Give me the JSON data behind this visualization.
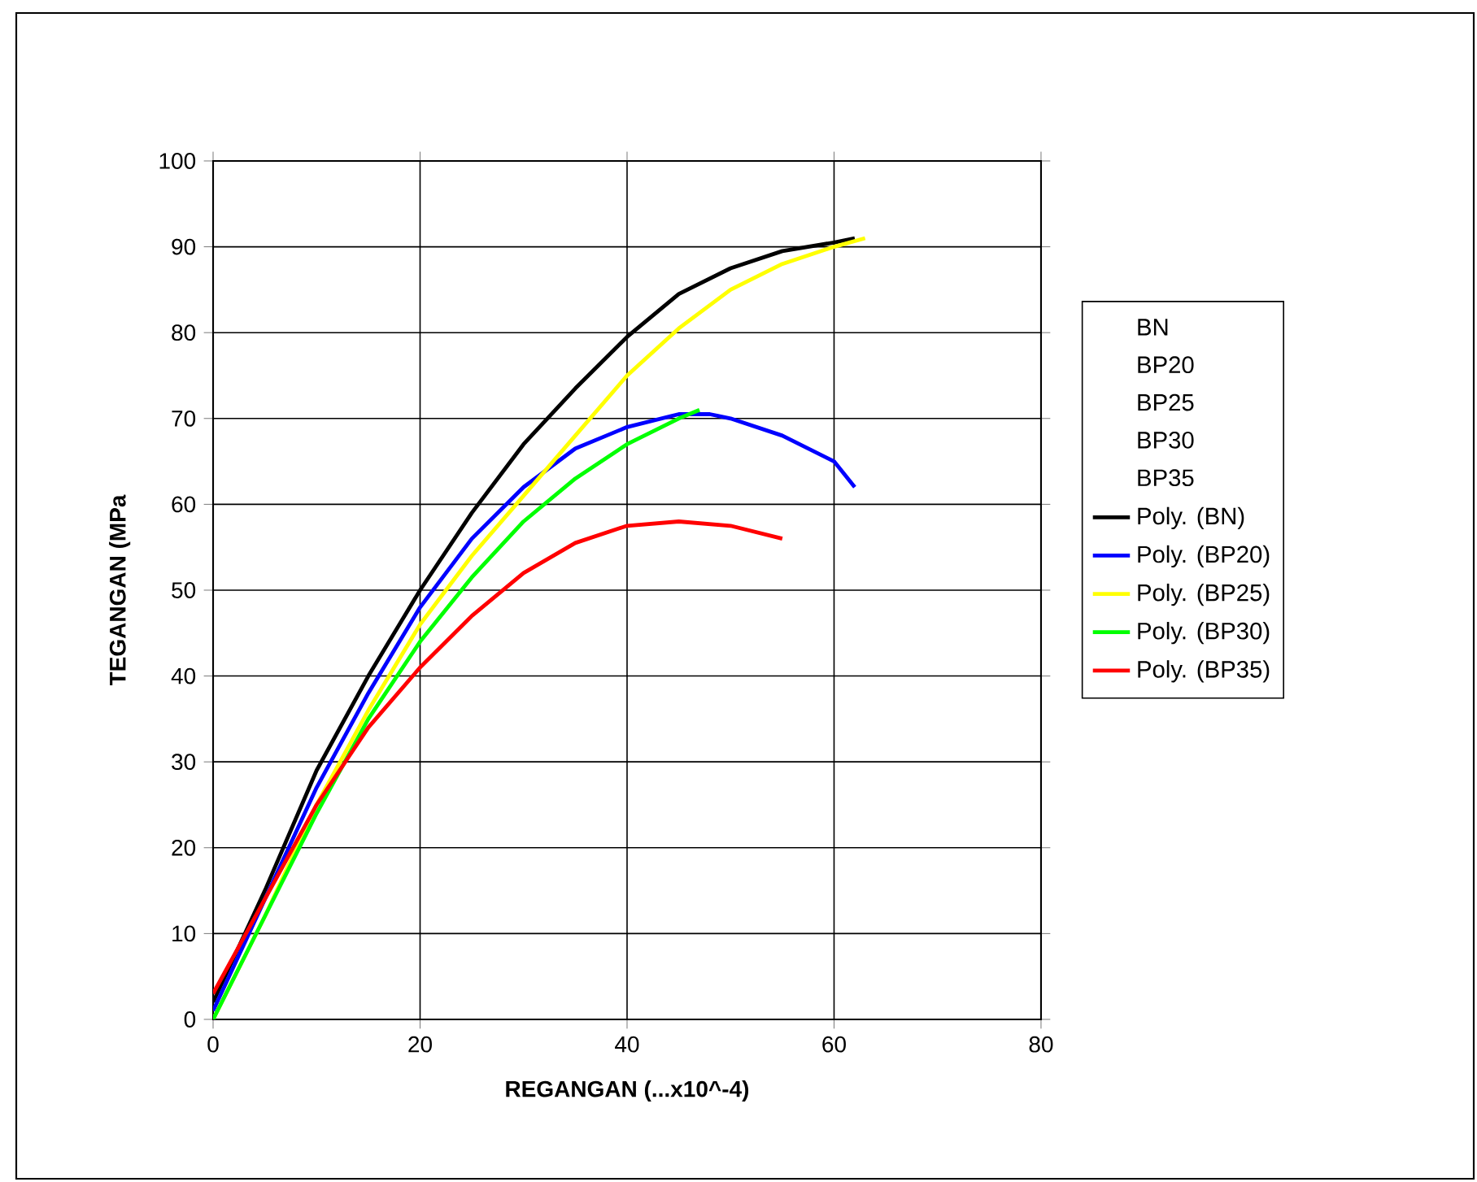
{
  "chart_data": {
    "type": "line",
    "xlabel": "REGANGAN (...x10^-4)",
    "ylabel": "TEGANGAN (MPa",
    "xlim": [
      0,
      80
    ],
    "xticks": [
      0,
      20,
      40,
      60,
      80
    ],
    "ylim": [
      0,
      100
    ],
    "yticks": [
      0,
      10,
      20,
      30,
      40,
      50,
      60,
      70,
      80,
      90,
      100
    ],
    "grid": true,
    "legend": "right",
    "marker": "none",
    "line_style": "solid",
    "annotations": [
      "BN",
      "BP20",
      "BP25",
      "BP30",
      "BP35"
    ],
    "series": [
      {
        "name": "Poly. (BN)",
        "color": "#000000",
        "x": [
          0,
          5,
          10,
          15,
          20,
          25,
          30,
          35,
          40,
          45,
          50,
          55,
          60,
          62
        ],
        "values": [
          2,
          15,
          29,
          40,
          50,
          59,
          67,
          73.5,
          79.5,
          84.5,
          87.5,
          89.5,
          90.5,
          91
        ]
      },
      {
        "name": "Poly. (BP20)",
        "color": "#0000ff",
        "x": [
          0,
          5,
          10,
          15,
          20,
          25,
          30,
          35,
          40,
          45,
          48,
          50,
          55,
          60,
          62
        ],
        "values": [
          1,
          14,
          27,
          38,
          48,
          56,
          62,
          66.5,
          69,
          70.5,
          70.5,
          70,
          68,
          65,
          62
        ]
      },
      {
        "name": "Poly. (BP25)",
        "color": "#ffff00",
        "x": [
          0,
          5,
          10,
          15,
          20,
          25,
          30,
          35,
          40,
          45,
          50,
          55,
          60,
          63
        ],
        "values": [
          0,
          12,
          25,
          36,
          46,
          54,
          61,
          68,
          75,
          80.5,
          85,
          88,
          90,
          91
        ]
      },
      {
        "name": "Poly. (BP30)",
        "color": "#00ff00",
        "x": [
          0,
          5,
          10,
          15,
          20,
          25,
          30,
          35,
          40,
          45,
          47
        ],
        "values": [
          0,
          12,
          24,
          35,
          44,
          51.5,
          58,
          63,
          67,
          70,
          71
        ]
      },
      {
        "name": "Poly. (BP35)",
        "color": "#ff0000",
        "x": [
          0,
          5,
          10,
          15,
          20,
          25,
          30,
          35,
          40,
          45,
          50,
          55
        ],
        "values": [
          3,
          14,
          25,
          34,
          41,
          47,
          52,
          55.5,
          57.5,
          58,
          57.5,
          56
        ]
      }
    ]
  }
}
